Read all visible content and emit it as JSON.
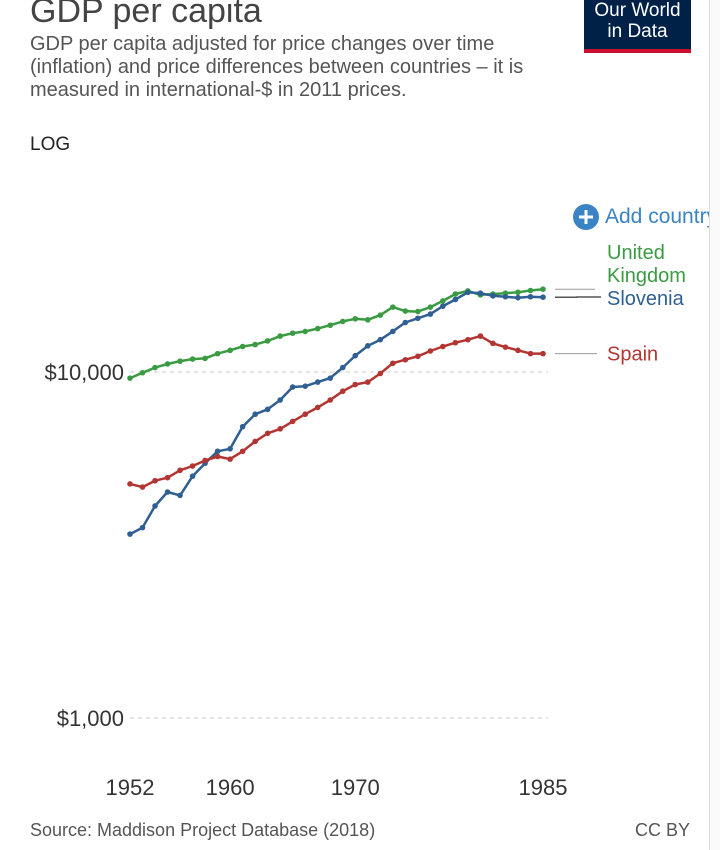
{
  "header": {
    "title": "GDP per capita",
    "subtitle": "GDP per capita adjusted for price changes over time (inflation) and price differences between countries – it is measured in international-$ in 2011 prices.",
    "scale_label": "LOG",
    "logo_line1": "Our World",
    "logo_line2": "in Data",
    "add_country_label": "Add country"
  },
  "footer": {
    "source": "Source: Maddison Project Database (2018)",
    "license": "CC BY"
  },
  "colors": {
    "uk": "#3a9b43",
    "slovenia": "#2f5f93",
    "spain": "#b33532",
    "accent": "#3a83c4",
    "logo_bg": "#002147",
    "logo_bar": "#c8102e"
  },
  "chart_data": {
    "type": "line",
    "title": "GDP per capita",
    "subtitle": "GDP per capita adjusted for price changes over time (inflation) and price differences between countries – it is measured in international-$ in 2011 prices.",
    "y_scale": "log",
    "ylim": [
      1000,
      20000
    ],
    "xlim": [
      1952,
      1985
    ],
    "y_ticks": [
      {
        "value": 1000,
        "label": "$1,000"
      },
      {
        "value": 10000,
        "label": "$10,000"
      }
    ],
    "x_ticks": [
      {
        "value": 1952,
        "label": "1952"
      },
      {
        "value": 1960,
        "label": "1960"
      },
      {
        "value": 1970,
        "label": "1970"
      },
      {
        "value": 1985,
        "label": "1985"
      }
    ],
    "grid": "horizontal dashed",
    "legend_placement": "right",
    "series": [
      {
        "name": "United Kingdom",
        "key": "uk",
        "x": [
          1952,
          1953,
          1954,
          1955,
          1956,
          1957,
          1958,
          1959,
          1960,
          1961,
          1962,
          1963,
          1964,
          1965,
          1966,
          1967,
          1968,
          1969,
          1970,
          1971,
          1972,
          1973,
          1974,
          1975,
          1976,
          1977,
          1978,
          1979,
          1980,
          1981,
          1982,
          1983,
          1984,
          1985
        ],
        "values": [
          9600,
          9950,
          10300,
          10550,
          10750,
          10900,
          10950,
          11300,
          11550,
          11850,
          12000,
          12300,
          12700,
          12950,
          13100,
          13350,
          13650,
          14000,
          14250,
          14150,
          14600,
          15400,
          15000,
          14950,
          15400,
          16050,
          16800,
          17150,
          16700,
          16800,
          16900,
          17000,
          17200,
          17350
        ]
      },
      {
        "name": "Slovenia",
        "key": "slovenia",
        "x": [
          1952,
          1953,
          1954,
          1955,
          1956,
          1957,
          1958,
          1959,
          1960,
          1961,
          1962,
          1963,
          1964,
          1965,
          1966,
          1967,
          1968,
          1969,
          1970,
          1971,
          1972,
          1973,
          1974,
          1975,
          1976,
          1977,
          1978,
          1979,
          1980,
          1981,
          1982,
          1983,
          1984,
          1985
        ],
        "values": [
          3400,
          3550,
          4100,
          4500,
          4400,
          5000,
          5450,
          5900,
          6000,
          6950,
          7550,
          7800,
          8300,
          9050,
          9100,
          9350,
          9600,
          10300,
          11150,
          11900,
          12400,
          13100,
          13900,
          14300,
          14700,
          15500,
          16200,
          17000,
          16900,
          16600,
          16500,
          16400,
          16500,
          16450
        ]
      },
      {
        "name": "Spain",
        "key": "spain",
        "x": [
          1952,
          1953,
          1954,
          1955,
          1956,
          1957,
          1958,
          1959,
          1960,
          1961,
          1962,
          1963,
          1964,
          1965,
          1966,
          1967,
          1968,
          1969,
          1970,
          1971,
          1972,
          1973,
          1974,
          1975,
          1976,
          1977,
          1978,
          1979,
          1980,
          1981,
          1982,
          1983,
          1984,
          1985
        ],
        "values": [
          4750,
          4650,
          4850,
          4950,
          5200,
          5350,
          5550,
          5700,
          5600,
          5900,
          6300,
          6650,
          6850,
          7200,
          7550,
          7900,
          8300,
          8800,
          9200,
          9350,
          9900,
          10600,
          10850,
          11100,
          11500,
          11850,
          12150,
          12400,
          12700,
          12100,
          11800,
          11550,
          11300,
          11300
        ]
      }
    ]
  }
}
